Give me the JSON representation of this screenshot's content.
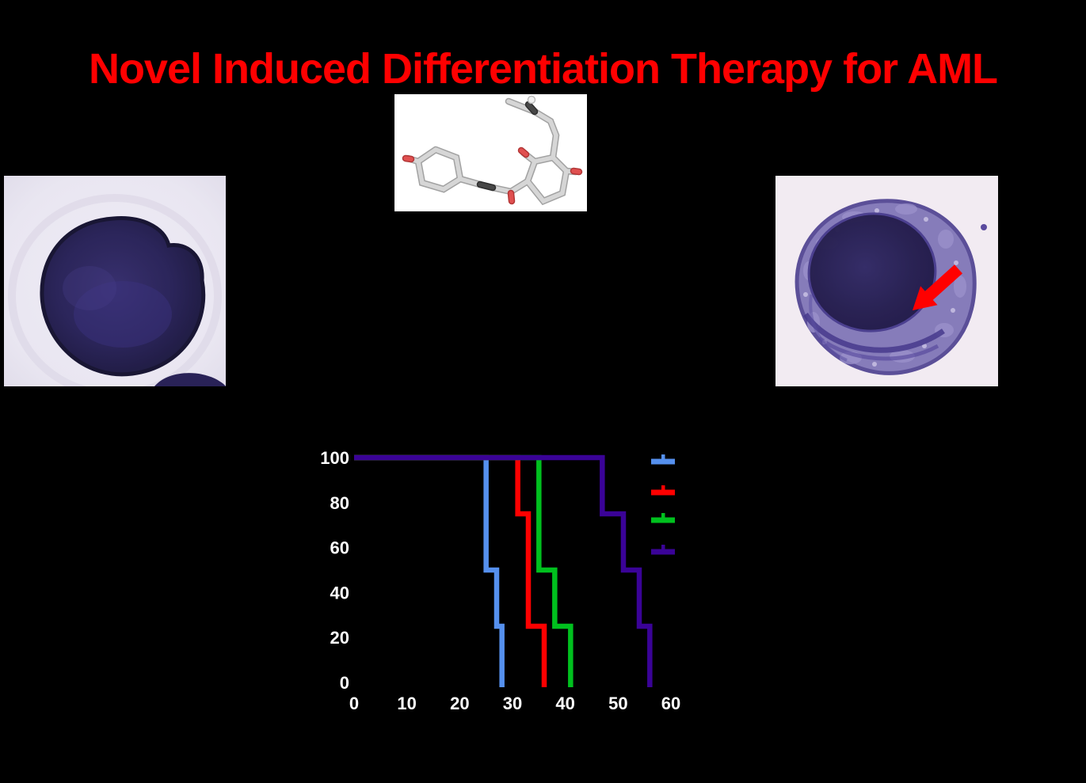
{
  "slide": {
    "title": "Novel Induced Differentiation Therapy for AML",
    "title_color": "#FF0000",
    "background_color": "#000000"
  },
  "figures": {
    "molecule": {
      "name": "compound-3d-stick-structure",
      "background": "#FFFFFF",
      "carbon_stick_color": "#D6D6D6",
      "oxygen_tip_color": "#E05050",
      "dark_carbon_color": "#474747"
    },
    "left_cell": {
      "name": "undifferentiated-blast-cell-micrograph",
      "background": "#E9E6F1",
      "cell_color": "#262052"
    },
    "right_cell": {
      "name": "differentiated-cell-micrograph",
      "background": "#F2EBF2",
      "cytoplasm_color": "#8379B9",
      "nucleus_color": "#2B2459",
      "arrow_color": "#FF0000"
    }
  },
  "chart_data": {
    "type": "line",
    "subtype": "kaplan-meier-survival-step",
    "title": "",
    "xlabel": "",
    "ylabel": "",
    "xlim": [
      0,
      60
    ],
    "ylim": [
      0,
      100
    ],
    "x_ticks": [
      0,
      10,
      20,
      30,
      40,
      50,
      60
    ],
    "y_ticks": [
      0,
      20,
      40,
      60,
      80,
      100
    ],
    "grid": false,
    "axis_text_color": "#FFFFFF",
    "legend_position": "right-inside-top",
    "legend_text_visible": false,
    "series": [
      {
        "name": "blue-group",
        "color": "#5590EE",
        "points": [
          [
            0,
            100
          ],
          [
            25,
            100
          ],
          [
            25,
            50
          ],
          [
            27,
            50
          ],
          [
            27,
            25
          ],
          [
            28,
            25
          ],
          [
            28,
            0
          ]
        ]
      },
      {
        "name": "red-group",
        "color": "#FF0000",
        "points": [
          [
            0,
            100
          ],
          [
            31,
            100
          ],
          [
            31,
            75
          ],
          [
            33,
            75
          ],
          [
            33,
            25
          ],
          [
            36,
            25
          ],
          [
            36,
            0
          ]
        ]
      },
      {
        "name": "green-group",
        "color": "#00C01E",
        "points": [
          [
            0,
            100
          ],
          [
            35,
            100
          ],
          [
            35,
            50
          ],
          [
            38,
            50
          ],
          [
            38,
            25
          ],
          [
            41,
            25
          ],
          [
            41,
            0
          ]
        ]
      },
      {
        "name": "purple-group",
        "color": "#3A0397",
        "points": [
          [
            0,
            100
          ],
          [
            47,
            100
          ],
          [
            47,
            75
          ],
          [
            51,
            75
          ],
          [
            51,
            50
          ],
          [
            54,
            50
          ],
          [
            54,
            25
          ],
          [
            56,
            25
          ],
          [
            56,
            0
          ]
        ]
      }
    ]
  }
}
